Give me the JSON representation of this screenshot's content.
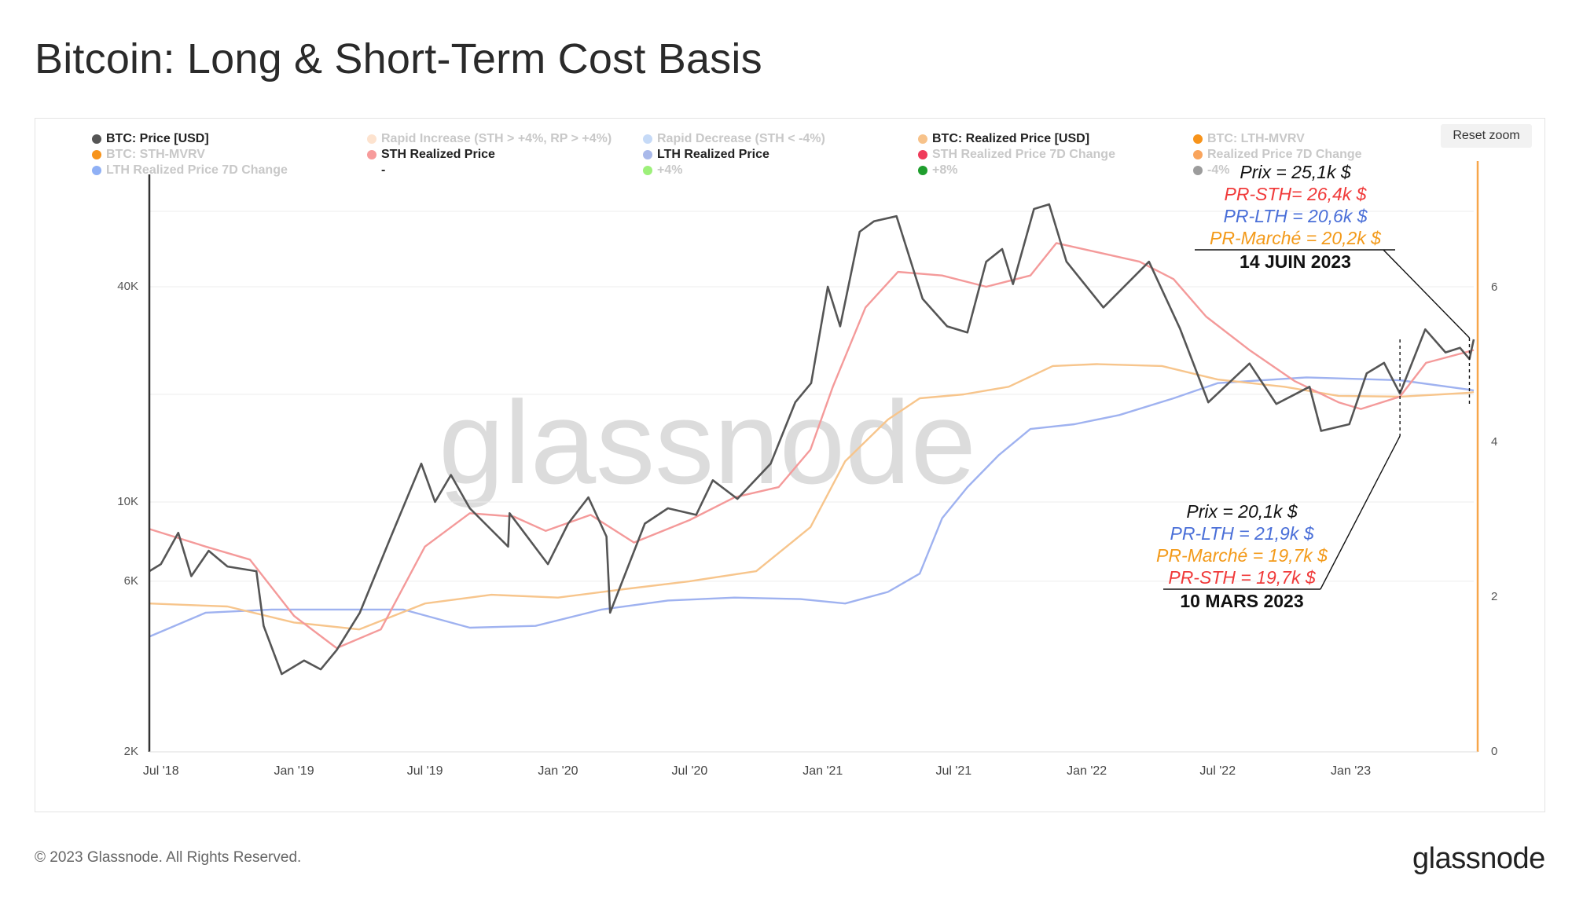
{
  "title": "Bitcoin: Long & Short-Term Cost Basis",
  "reset_zoom": "Reset zoom",
  "watermark": "glassnode",
  "footer": "© 2023 Glassnode. All Rights Reserved.",
  "brand": "glassnode",
  "legend": [
    {
      "label": "BTC: Price [USD]",
      "color": "#555555",
      "active": true
    },
    {
      "label": "Rapid Increase (STH > +4%, RP > +4%)",
      "color": "#fde3cf",
      "active": false
    },
    {
      "label": "Rapid Decrease (STH < -4%)",
      "color": "#c6daf7",
      "active": false
    },
    {
      "label": "BTC: Realized Price [USD]",
      "color": "#f7c28a",
      "active": true
    },
    {
      "label": "BTC: LTH-MVRV",
      "color": "#f7931a",
      "active": false
    },
    {
      "label": "BTC: STH-MVRV",
      "color": "#f7931a",
      "active": false
    },
    {
      "label": "STH Realized Price",
      "color": "#f79b9b",
      "active": true
    },
    {
      "label": "LTH Realized Price",
      "color": "#a9b9ea",
      "active": true
    },
    {
      "label": "STH Realized Price 7D Change",
      "color": "#ef3b5a",
      "active": false
    },
    {
      "label": "Realized Price 7D Change",
      "color": "#f9a45c",
      "active": false
    },
    {
      "label": "LTH Realized Price 7D Change",
      "color": "#8fb0f5",
      "active": false
    },
    {
      "label": "-",
      "color": "",
      "active": true
    },
    {
      "label": "+4%",
      "color": "#9df07a",
      "active": false
    },
    {
      "label": "+8%",
      "color": "#1f9e2d",
      "active": false
    },
    {
      "label": "-4%",
      "color": "#9c9c9c",
      "active": false
    }
  ],
  "annotations": {
    "june": {
      "price": "Prix = 25,1k $",
      "sth": "PR-STH= 26,4k $",
      "lth": "PR-LTH = 20,6k $",
      "market": "PR-Marché = 20,2k $",
      "date": "14 JUIN 2023"
    },
    "march": {
      "price": "Prix = 20,1k $",
      "lth": "PR-LTH = 21,9k $",
      "market": "PR-Marché = 19,7k $",
      "sth": "PR-STH = 19,7k $",
      "date": "10 MARS 2023"
    }
  },
  "colors": {
    "price": "#555555",
    "sth": "#f49a9a",
    "lth": "#9fb2f0",
    "realized": "#f7c58c",
    "ann_price": "#111111",
    "ann_sth": "#f03a3a",
    "ann_lth": "#4a6fd8",
    "ann_market": "#f39a1a",
    "right_axis": "#f7a64a"
  },
  "chart_data": {
    "type": "line",
    "y_scale": "log",
    "ylim": [
      2000,
      80000
    ],
    "y_ticks": [
      {
        "value": 2000,
        "label": "2K"
      },
      {
        "value": 6000,
        "label": "6K"
      },
      {
        "value": 10000,
        "label": "10K"
      },
      {
        "value": 40000,
        "label": "40K"
      }
    ],
    "y2lim": [
      0,
      7.4
    ],
    "y2_ticks": [
      {
        "value": 0,
        "label": "0"
      },
      {
        "value": 2,
        "label": "2"
      },
      {
        "value": 4,
        "label": "4"
      },
      {
        "value": 6,
        "label": "6"
      }
    ],
    "xlim": [
      "2018-06-15",
      "2023-06-20"
    ],
    "x_ticks": [
      {
        "value": "2018-07-01",
        "label": "Jul '18"
      },
      {
        "value": "2019-01-01",
        "label": "Jan '19"
      },
      {
        "value": "2019-07-01",
        "label": "Jul '19"
      },
      {
        "value": "2020-01-01",
        "label": "Jan '20"
      },
      {
        "value": "2020-07-01",
        "label": "Jul '20"
      },
      {
        "value": "2021-01-01",
        "label": "Jan '21"
      },
      {
        "value": "2021-07-01",
        "label": "Jul '21"
      },
      {
        "value": "2022-01-01",
        "label": "Jan '22"
      },
      {
        "value": "2022-07-01",
        "label": "Jul '22"
      },
      {
        "value": "2023-01-01",
        "label": "Jan '23"
      }
    ],
    "series": [
      {
        "name": "BTC: Price [USD]",
        "points": [
          [
            "2018-06-15",
            6400
          ],
          [
            "2018-07-01",
            6700
          ],
          [
            "2018-07-25",
            8200
          ],
          [
            "2018-08-12",
            6200
          ],
          [
            "2018-09-05",
            7300
          ],
          [
            "2018-10-01",
            6600
          ],
          [
            "2018-11-10",
            6400
          ],
          [
            "2018-11-20",
            4500
          ],
          [
            "2018-12-15",
            3300
          ],
          [
            "2019-01-15",
            3600
          ],
          [
            "2019-02-07",
            3400
          ],
          [
            "2019-03-01",
            3850
          ],
          [
            "2019-04-02",
            4900
          ],
          [
            "2019-05-14",
            7900
          ],
          [
            "2019-06-26",
            12800
          ],
          [
            "2019-07-15",
            10000
          ],
          [
            "2019-08-06",
            11900
          ],
          [
            "2019-09-01",
            9600
          ],
          [
            "2019-10-24",
            7500
          ],
          [
            "2019-10-26",
            9300
          ],
          [
            "2019-12-18",
            6700
          ],
          [
            "2020-01-15",
            8700
          ],
          [
            "2020-02-12",
            10300
          ],
          [
            "2020-03-08",
            8000
          ],
          [
            "2020-03-13",
            4900
          ],
          [
            "2020-04-30",
            8700
          ],
          [
            "2020-06-01",
            9600
          ],
          [
            "2020-07-10",
            9200
          ],
          [
            "2020-08-02",
            11500
          ],
          [
            "2020-09-05",
            10200
          ],
          [
            "2020-10-21",
            12800
          ],
          [
            "2020-11-24",
            19000
          ],
          [
            "2020-12-16",
            21500
          ],
          [
            "2021-01-08",
            40000
          ],
          [
            "2021-01-25",
            31000
          ],
          [
            "2021-02-21",
            57000
          ],
          [
            "2021-03-13",
            61000
          ],
          [
            "2021-04-13",
            63000
          ],
          [
            "2021-05-19",
            37000
          ],
          [
            "2021-06-22",
            31000
          ],
          [
            "2021-07-20",
            29800
          ],
          [
            "2021-08-15",
            47000
          ],
          [
            "2021-09-06",
            51000
          ],
          [
            "2021-09-21",
            40700
          ],
          [
            "2021-10-20",
            66000
          ],
          [
            "2021-11-10",
            68000
          ],
          [
            "2021-12-04",
            47000
          ],
          [
            "2022-01-24",
            35000
          ],
          [
            "2022-03-28",
            47000
          ],
          [
            "2022-05-10",
            30500
          ],
          [
            "2022-06-18",
            19000
          ],
          [
            "2022-08-14",
            24400
          ],
          [
            "2022-09-20",
            18800
          ],
          [
            "2022-11-05",
            21000
          ],
          [
            "2022-11-21",
            15800
          ],
          [
            "2022-12-30",
            16500
          ],
          [
            "2023-01-23",
            22900
          ],
          [
            "2023-02-16",
            24500
          ],
          [
            "2023-03-10",
            20100
          ],
          [
            "2023-04-14",
            30400
          ],
          [
            "2023-05-12",
            26200
          ],
          [
            "2023-06-01",
            27000
          ],
          [
            "2023-06-14",
            25100
          ],
          [
            "2023-06-20",
            28500
          ]
        ]
      },
      {
        "name": "STH Realized Price",
        "points": [
          [
            "2018-06-15",
            8400
          ],
          [
            "2018-09-01",
            7500
          ],
          [
            "2018-11-01",
            6900
          ],
          [
            "2019-01-01",
            4800
          ],
          [
            "2019-03-01",
            3900
          ],
          [
            "2019-05-01",
            4400
          ],
          [
            "2019-07-01",
            7500
          ],
          [
            "2019-09-01",
            9300
          ],
          [
            "2019-11-01",
            9100
          ],
          [
            "2019-12-15",
            8300
          ],
          [
            "2020-02-15",
            9200
          ],
          [
            "2020-04-15",
            7700
          ],
          [
            "2020-07-01",
            8900
          ],
          [
            "2020-09-01",
            10300
          ],
          [
            "2020-11-01",
            11000
          ],
          [
            "2020-12-15",
            14000
          ],
          [
            "2021-01-15",
            21000
          ],
          [
            "2021-03-01",
            35000
          ],
          [
            "2021-04-15",
            44000
          ],
          [
            "2021-06-15",
            43000
          ],
          [
            "2021-08-15",
            40000
          ],
          [
            "2021-10-15",
            43000
          ],
          [
            "2021-11-20",
            53000
          ],
          [
            "2022-01-15",
            50000
          ],
          [
            "2022-03-15",
            47000
          ],
          [
            "2022-05-01",
            42000
          ],
          [
            "2022-06-15",
            33000
          ],
          [
            "2022-08-15",
            26500
          ],
          [
            "2022-10-15",
            21800
          ],
          [
            "2022-12-15",
            19000
          ],
          [
            "2023-01-15",
            18200
          ],
          [
            "2023-03-10",
            19700
          ],
          [
            "2023-04-15",
            24500
          ],
          [
            "2023-06-14",
            26400
          ],
          [
            "2023-06-20",
            26600
          ]
        ]
      },
      {
        "name": "LTH Realized Price",
        "points": [
          [
            "2018-06-15",
            4200
          ],
          [
            "2018-09-01",
            4900
          ],
          [
            "2018-12-01",
            5000
          ],
          [
            "2019-06-01",
            5000
          ],
          [
            "2019-09-01",
            4450
          ],
          [
            "2019-12-01",
            4500
          ],
          [
            "2020-03-01",
            5000
          ],
          [
            "2020-06-01",
            5300
          ],
          [
            "2020-09-01",
            5400
          ],
          [
            "2020-12-01",
            5350
          ],
          [
            "2021-02-01",
            5200
          ],
          [
            "2021-04-01",
            5600
          ],
          [
            "2021-05-15",
            6300
          ],
          [
            "2021-06-15",
            9000
          ],
          [
            "2021-07-20",
            11000
          ],
          [
            "2021-09-01",
            13500
          ],
          [
            "2021-10-15",
            16000
          ],
          [
            "2021-12-15",
            16500
          ],
          [
            "2022-02-15",
            17500
          ],
          [
            "2022-05-01",
            19500
          ],
          [
            "2022-07-01",
            21500
          ],
          [
            "2022-11-01",
            22300
          ],
          [
            "2023-03-10",
            21900
          ],
          [
            "2023-06-14",
            20600
          ],
          [
            "2023-06-20",
            20500
          ]
        ]
      },
      {
        "name": "BTC: Realized Price [USD]",
        "points": [
          [
            "2018-06-15",
            5200
          ],
          [
            "2018-10-01",
            5100
          ],
          [
            "2019-01-01",
            4600
          ],
          [
            "2019-04-01",
            4400
          ],
          [
            "2019-07-01",
            5200
          ],
          [
            "2019-10-01",
            5500
          ],
          [
            "2020-01-01",
            5400
          ],
          [
            "2020-04-01",
            5700
          ],
          [
            "2020-07-01",
            6000
          ],
          [
            "2020-10-01",
            6400
          ],
          [
            "2020-12-15",
            8500
          ],
          [
            "2021-02-01",
            13000
          ],
          [
            "2021-04-01",
            17000
          ],
          [
            "2021-05-15",
            19500
          ],
          [
            "2021-07-15",
            20000
          ],
          [
            "2021-09-15",
            21000
          ],
          [
            "2021-11-15",
            24000
          ],
          [
            "2022-01-15",
            24300
          ],
          [
            "2022-04-15",
            24000
          ],
          [
            "2022-07-01",
            22000
          ],
          [
            "2022-10-01",
            21000
          ],
          [
            "2022-12-15",
            19800
          ],
          [
            "2023-03-10",
            19700
          ],
          [
            "2023-06-14",
            20200
          ],
          [
            "2023-06-20",
            20300
          ]
        ]
      }
    ]
  }
}
